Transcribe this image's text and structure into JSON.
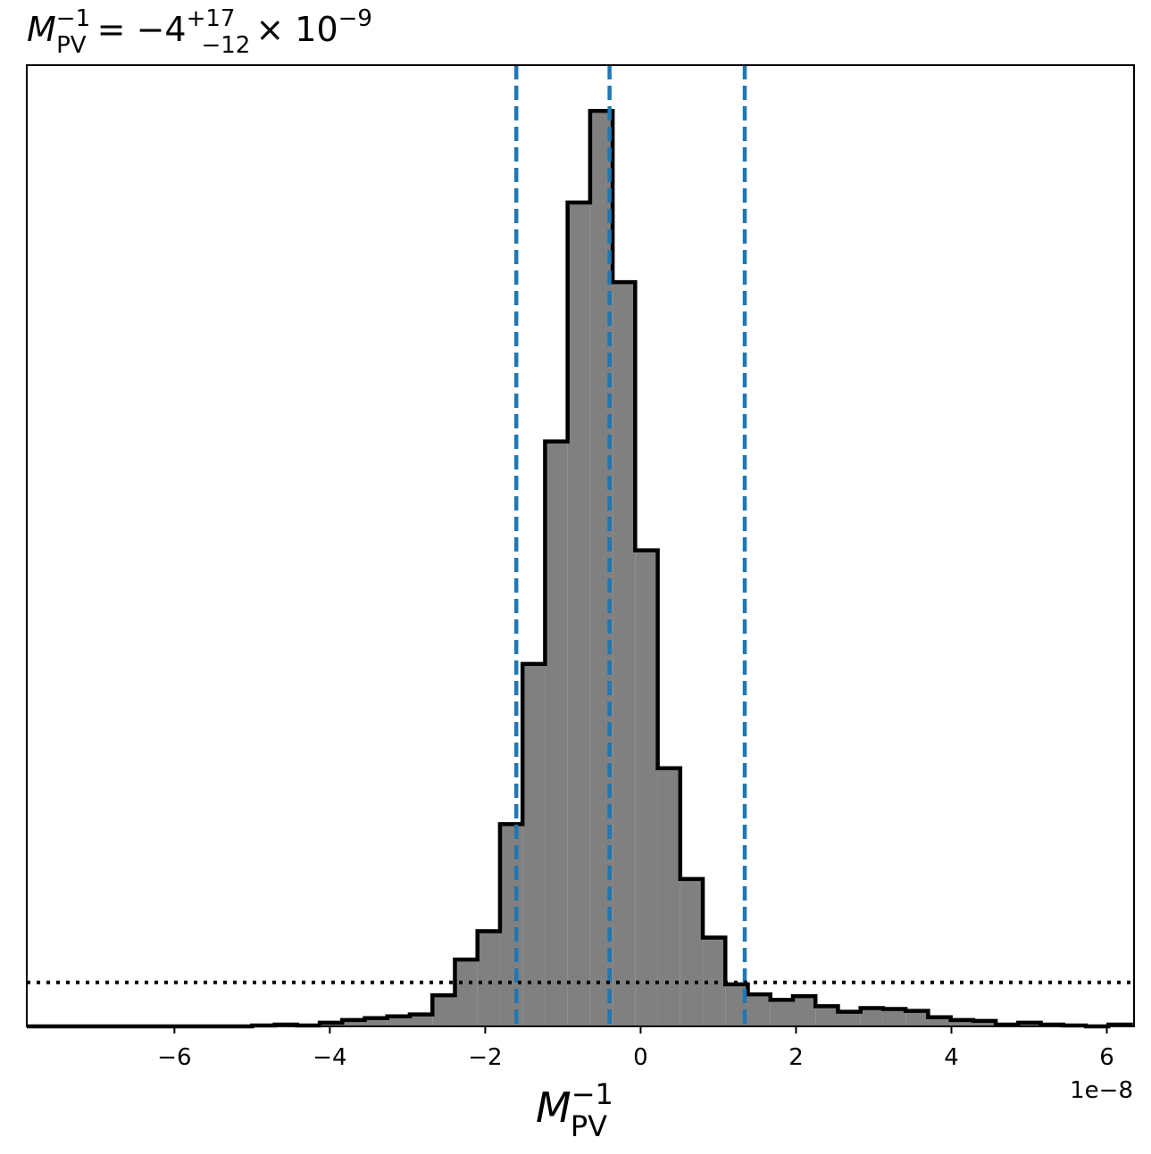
{
  "chart_data": {
    "type": "bar",
    "title": {
      "base": "M",
      "base_sup": "−1",
      "base_sub": "PV",
      "eq": " = −4",
      "sup": "+17",
      "sub": "−12",
      "mult": "× 10",
      "exp": "−9"
    },
    "xlabel": {
      "base": "M",
      "sup": "−1",
      "sub": "PV"
    },
    "offset_text": "1e−8",
    "x_unit_scale": 1e-08,
    "xlim": [
      -7.9,
      6.35
    ],
    "ylim": [
      0,
      1.05
    ],
    "x_ticks": [
      {
        "value": -6,
        "label": "−6"
      },
      {
        "value": -4,
        "label": "−4"
      },
      {
        "value": -2,
        "label": "−2"
      },
      {
        "value": 0,
        "label": "0"
      },
      {
        "value": 2,
        "label": "2"
      },
      {
        "value": 4,
        "label": "4"
      },
      {
        "value": 6,
        "label": "6"
      }
    ],
    "bin_edges": [
      -7.9,
      -7.61,
      -7.32,
      -7.03,
      -6.74,
      -6.45,
      -6.16,
      -5.87,
      -5.58,
      -5.29,
      -5.0,
      -4.71,
      -4.42,
      -4.13,
      -3.84,
      -3.55,
      -3.26,
      -2.97,
      -2.68,
      -2.39,
      -2.1,
      -1.81,
      -1.52,
      -1.23,
      -0.94,
      -0.65,
      -0.36,
      -0.07,
      0.22,
      0.51,
      0.8,
      1.09,
      1.38,
      1.67,
      1.96,
      2.25,
      2.54,
      2.83,
      3.12,
      3.41,
      3.7,
      3.99,
      4.28,
      4.57,
      4.86,
      5.15,
      5.44,
      5.73,
      6.02,
      6.31
    ],
    "counts": [
      0.0,
      0.0,
      0.0,
      0.0,
      0.0,
      0.0,
      0.0,
      0.0,
      0.0,
      0.0,
      0.001,
      0.002,
      0.001,
      0.004,
      0.007,
      0.009,
      0.011,
      0.013,
      0.034,
      0.073,
      0.104,
      0.221,
      0.396,
      0.639,
      0.9,
      1.0,
      0.813,
      0.52,
      0.282,
      0.161,
      0.097,
      0.046,
      0.035,
      0.029,
      0.033,
      0.022,
      0.016,
      0.02,
      0.019,
      0.017,
      0.01,
      0.007,
      0.006,
      0.002,
      0.004,
      0.002,
      0.001,
      0.0,
      0.002
    ],
    "quantile_lines": [
      -1.6,
      -0.4,
      1.34
    ],
    "quantile_color": "#1f77b4",
    "prior_level": 0.048,
    "hist_fill": "#808080",
    "hist_edge": "#000000",
    "grid": false
  }
}
